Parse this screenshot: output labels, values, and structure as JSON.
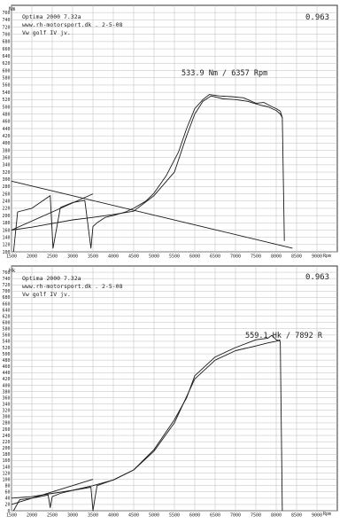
{
  "chart_data": [
    {
      "type": "line",
      "title": "Optima 2000 7.32a",
      "source_line": "www.rh-motorsport.dk   .  2-5-08",
      "car_line": "Vw golf IV jv.",
      "ylabel": "Nm",
      "correction_factor": "0.963",
      "peak_annotation": "533.9 Nm  /  6357 Rpm",
      "xlabel": "Rpm",
      "xlim": [
        1500,
        9500
      ],
      "ylim": [
        100,
        780
      ],
      "x_ticks": [
        1500,
        2000,
        2500,
        3000,
        3500,
        4000,
        4500,
        5000,
        5500,
        6000,
        6500,
        7000,
        7500,
        8000,
        8500,
        9000
      ],
      "y_ticks": [
        100,
        120,
        140,
        160,
        180,
        200,
        220,
        240,
        260,
        280,
        300,
        320,
        340,
        360,
        380,
        400,
        420,
        440,
        460,
        480,
        500,
        520,
        540,
        560,
        580,
        600,
        620,
        640,
        660,
        680,
        700,
        720,
        740,
        760
      ],
      "grid": true,
      "series": [
        {
          "x": [
            1550,
            1650,
            2000,
            2450,
            2520,
            2700,
            3000,
            3300,
            3450,
            3500,
            3600,
            3800,
            4000,
            4300,
            4500,
            4800,
            5000,
            5300,
            5600,
            5800,
            6000,
            6200,
            6357,
            6600,
            6900,
            7200,
            7500,
            7700,
            7900,
            8000,
            8100,
            8150,
            8200
          ],
          "y": [
            100,
            210,
            220,
            255,
            110,
            222,
            236,
            242,
            110,
            170,
            180,
            195,
            200,
            210,
            220,
            240,
            262,
            310,
            375,
            440,
            495,
            520,
            534,
            530,
            528,
            525,
            510,
            512,
            500,
            495,
            488,
            470,
            130
          ]
        },
        {
          "x": [
            1500,
            2000,
            2500,
            3000,
            3500,
            4000,
            4500,
            5000,
            5500,
            5800,
            6000,
            6200,
            6400,
            6700,
            7000,
            7300,
            7600,
            7800,
            8000,
            8100,
            8150
          ],
          "y": [
            160,
            168,
            178,
            188,
            195,
            203,
            212,
            255,
            320,
            420,
            480,
            515,
            530,
            522,
            520,
            515,
            505,
            500,
            490,
            480,
            470
          ]
        },
        {
          "x": [
            1500,
            8400
          ],
          "y": [
            295,
            110
          ]
        },
        {
          "x": [
            1500,
            3500
          ],
          "y": [
            160,
            260
          ]
        }
      ]
    },
    {
      "type": "line",
      "title": "Optima 2000 7.32a",
      "source_line": "www.rh-motorsport.dk   .  2-5-08",
      "car_line": "Vw golf IV jv.",
      "ylabel": "Hk",
      "correction_factor": "0.963",
      "peak_annotation": "559.1 Hk  /  7892 R",
      "xlabel": "Rpm",
      "xlim": [
        1500,
        9500
      ],
      "ylim": [
        0,
        780
      ],
      "x_ticks": [
        1500,
        2000,
        2500,
        3000,
        3500,
        4000,
        4500,
        5000,
        5500,
        6000,
        6500,
        7000,
        7500,
        8000,
        8500,
        9000
      ],
      "y_ticks": [
        0,
        20,
        40,
        60,
        80,
        100,
        120,
        140,
        160,
        180,
        200,
        220,
        240,
        260,
        280,
        300,
        320,
        340,
        360,
        380,
        400,
        420,
        440,
        460,
        480,
        500,
        520,
        540,
        560,
        580,
        600,
        620,
        640,
        660,
        680,
        700,
        720,
        740,
        760
      ],
      "grid": true,
      "series": [
        {
          "x": [
            1550,
            1700,
            2000,
            2400,
            2450,
            2500,
            2700,
            3000,
            3450,
            3500,
            3600,
            4000,
            4500,
            5000,
            5500,
            5800,
            6000,
            6500,
            7000,
            7500,
            7800,
            7892,
            8000,
            8100,
            8150
          ],
          "y": [
            0,
            35,
            40,
            50,
            10,
            45,
            55,
            65,
            75,
            0,
            80,
            98,
            130,
            195,
            290,
            360,
            430,
            490,
            520,
            545,
            550,
            559,
            545,
            540,
            0
          ]
        },
        {
          "x": [
            1500,
            2000,
            2500,
            3000,
            3500,
            4000,
            4500,
            5000,
            5500,
            6000,
            6500,
            7000,
            7500,
            7800,
            8000,
            8100
          ],
          "y": [
            40,
            45,
            55,
            65,
            80,
            98,
            130,
            190,
            280,
            420,
            480,
            510,
            525,
            535,
            540,
            545
          ]
        },
        {
          "x": [
            1500,
            3500
          ],
          "y": [
            20,
            100
          ]
        }
      ]
    }
  ]
}
